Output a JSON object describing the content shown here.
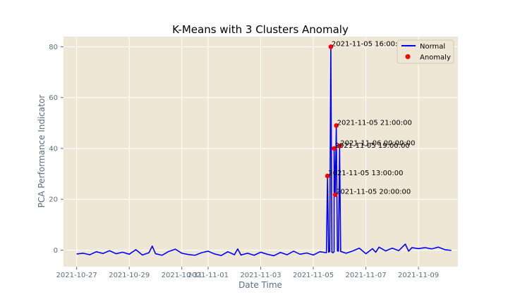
{
  "chart_data": {
    "type": "line",
    "title": "K-Means with 3 Clusters Anomaly",
    "xlabel": "Date Time",
    "ylabel": "PCA Performance Indicator",
    "xlim": [
      "2021-10-26 12:00",
      "2021-11-10 12:00"
    ],
    "ylim": [
      -6.5,
      84
    ],
    "x_ticks": [
      "2021-10-27",
      "2021-10-29",
      "2021-10-31",
      "2021-11-01",
      "2021-11-03",
      "2021-11-05",
      "2021-11-07",
      "2021-11-09"
    ],
    "y_ticks": [
      0,
      20,
      40,
      60,
      80
    ],
    "grid": true,
    "legend": {
      "position": "top-right",
      "entries": [
        {
          "label": "Normal",
          "kind": "line",
          "color": "#0000ff"
        },
        {
          "label": "Anomaly",
          "kind": "point",
          "color": "#ff0000"
        }
      ]
    },
    "colors": {
      "background": "#efe7d5",
      "line": "#0000ff",
      "anomaly": "#ff0000",
      "grid": "#ffffff"
    },
    "series": [
      {
        "name": "Normal",
        "kind": "line",
        "points": [
          [
            "2021-10-27 00:00",
            -1.5
          ],
          [
            "2021-10-27 06:00",
            -1.2
          ],
          [
            "2021-10-27 12:00",
            -1.8
          ],
          [
            "2021-10-27 18:00",
            -0.6
          ],
          [
            "2021-10-28 00:00",
            -1.3
          ],
          [
            "2021-10-28 06:00",
            -0.2
          ],
          [
            "2021-10-28 12:00",
            -1.4
          ],
          [
            "2021-10-28 18:00",
            -0.8
          ],
          [
            "2021-10-29 00:00",
            -1.6
          ],
          [
            "2021-10-29 06:00",
            0.2
          ],
          [
            "2021-10-29 12:00",
            -1.9
          ],
          [
            "2021-10-29 18:00",
            -1.0
          ],
          [
            "2021-10-29 21:00",
            1.6
          ],
          [
            "2021-10-30 00:00",
            -1.4
          ],
          [
            "2021-10-30 06:00",
            -2.0
          ],
          [
            "2021-10-30 12:00",
            -0.5
          ],
          [
            "2021-10-30 18:00",
            0.4
          ],
          [
            "2021-10-31 00:00",
            -1.2
          ],
          [
            "2021-10-31 06:00",
            -1.7
          ],
          [
            "2021-10-31 12:00",
            -2.0
          ],
          [
            "2021-10-31 18:00",
            -1.0
          ],
          [
            "2021-11-01 00:00",
            -0.4
          ],
          [
            "2021-11-01 06:00",
            -1.5
          ],
          [
            "2021-11-01 12:00",
            -2.1
          ],
          [
            "2021-11-01 18:00",
            -0.6
          ],
          [
            "2021-11-02 00:00",
            -1.8
          ],
          [
            "2021-11-02 03:00",
            0.5
          ],
          [
            "2021-11-02 06:00",
            -1.9
          ],
          [
            "2021-11-02 12:00",
            -1.2
          ],
          [
            "2021-11-02 18:00",
            -2.0
          ],
          [
            "2021-11-03 00:00",
            -0.8
          ],
          [
            "2021-11-03 06:00",
            -1.6
          ],
          [
            "2021-11-03 12:00",
            -2.2
          ],
          [
            "2021-11-03 18:00",
            -0.9
          ],
          [
            "2021-11-04 00:00",
            -1.8
          ],
          [
            "2021-11-04 06:00",
            -0.4
          ],
          [
            "2021-11-04 12:00",
            -1.6
          ],
          [
            "2021-11-04 18:00",
            -1.1
          ],
          [
            "2021-11-05 00:00",
            -1.9
          ],
          [
            "2021-11-05 06:00",
            -0.6
          ],
          [
            "2021-11-05 12:00",
            -1.0
          ],
          [
            "2021-11-05 14:00",
            -0.8
          ],
          [
            "2021-11-05 15:00",
            -0.5
          ],
          [
            "2021-11-05 17:00",
            -0.8
          ],
          [
            "2021-11-05 18:00",
            -1.0
          ],
          [
            "2021-11-05 19:00",
            -0.6
          ],
          [
            "2021-11-05 22:00",
            -0.3
          ],
          [
            "2021-11-05 23:00",
            -0.4
          ],
          [
            "2021-11-06 01:00",
            -0.5
          ],
          [
            "2021-11-06 06:00",
            -1.2
          ],
          [
            "2021-11-06 12:00",
            -0.3
          ],
          [
            "2021-11-06 18:00",
            0.8
          ],
          [
            "2021-11-07 00:00",
            -1.4
          ],
          [
            "2021-11-07 06:00",
            0.6
          ],
          [
            "2021-11-07 09:00",
            -0.8
          ],
          [
            "2021-11-07 12:00",
            1.2
          ],
          [
            "2021-11-07 18:00",
            -0.3
          ],
          [
            "2021-11-08 00:00",
            0.8
          ],
          [
            "2021-11-08 06:00",
            -0.2
          ],
          [
            "2021-11-08 12:00",
            2.4
          ],
          [
            "2021-11-08 15:00",
            -0.4
          ],
          [
            "2021-11-08 18:00",
            1.0
          ],
          [
            "2021-11-09 00:00",
            0.6
          ],
          [
            "2021-11-09 06:00",
            1.0
          ],
          [
            "2021-11-09 12:00",
            0.5
          ],
          [
            "2021-11-09 18:00",
            1.2
          ],
          [
            "2021-11-10 00:00",
            0.2
          ],
          [
            "2021-11-10 06:00",
            -0.1
          ]
        ]
      },
      {
        "name": "Anomaly",
        "kind": "scatter",
        "points": [
          [
            "2021-11-05 13:00",
            29.2
          ],
          [
            "2021-11-05 16:00",
            80
          ],
          [
            "2021-11-05 19:00",
            40
          ],
          [
            "2021-11-05 20:00",
            21.8
          ],
          [
            "2021-11-05 21:00",
            49
          ],
          [
            "2021-11-06 00:00",
            41
          ]
        ]
      }
    ],
    "annotations": [
      {
        "text": "2021-11-05 16:00:00",
        "x": "2021-11-05 16:00",
        "y": 80
      },
      {
        "text": "2021-11-05 21:00:00",
        "x": "2021-11-05 21:00",
        "y": 49
      },
      {
        "text": "2021-11-06 00:00:00",
        "x": "2021-11-06 00:00",
        "y": 41
      },
      {
        "text": "2021-11-05 19:00:00",
        "x": "2021-11-05 19:00",
        "y": 40
      },
      {
        "text": "2021-11-05 13:00:00",
        "x": "2021-11-05 13:00",
        "y": 29.2
      },
      {
        "text": "2021-11-05 20:00:00",
        "x": "2021-11-05 20:00",
        "y": 21.8
      }
    ]
  }
}
